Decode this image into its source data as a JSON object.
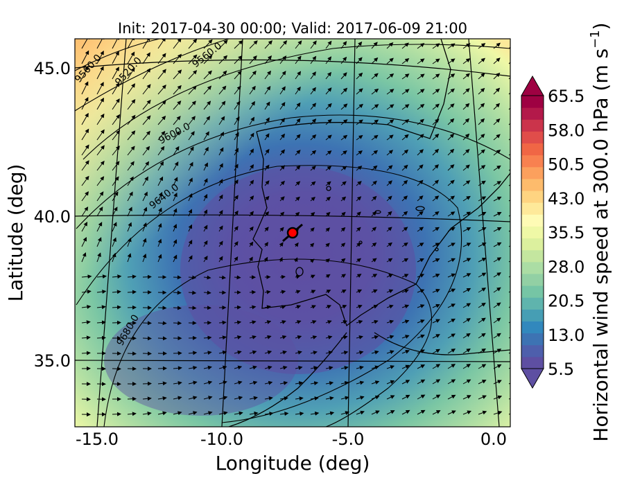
{
  "title": "Init: 2017-04-30 00:00; Valid: 2017-06-09 21:00",
  "xlabel": "Longitude (deg)",
  "ylabel": "Latitude (deg)",
  "x_ticks": [
    "-15.0",
    "-10.0",
    "-5.0",
    "0.0"
  ],
  "y_ticks": [
    "45.0",
    "40.0",
    "35.0"
  ],
  "colorbar": {
    "label": "Horizontal wind speed at 300.0 hPa (m s$^{-1}$)",
    "label_main": "Horizontal wind speed at 300.0 hPa (m s",
    "label_exp": "−1",
    "label_close": ")",
    "ticks": [
      "5.5",
      "13.0",
      "20.5",
      "28.0",
      "35.5",
      "43.0",
      "50.5",
      "58.0",
      "65.5"
    ],
    "colors": [
      "#5e4fa2",
      "#4e5fac",
      "#3d73b3",
      "#3288bd",
      "#469eb4",
      "#5fb4ad",
      "#76c5a5",
      "#92d0a4",
      "#abdda4",
      "#c4e69f",
      "#dcf09e",
      "#eff8a6",
      "#fefbb5",
      "#fee99a",
      "#fed481",
      "#fdbb6c",
      "#fca05d",
      "#f88150",
      "#f06645",
      "#e04d4a",
      "#cb344b",
      "#b3194a",
      "#9e0142"
    ]
  },
  "contour_labels": [
    "9560.0",
    "9520.0",
    "9600.0",
    "9640.0",
    "9680.0",
    "9560.0"
  ],
  "marker": {
    "name": "location-marker",
    "color": "#ff0000"
  },
  "chart_data": {
    "type": "heatmap",
    "title": "Init: 2017-04-30 00:00; Valid: 2017-06-09 21:00",
    "xlabel": "Longitude (deg)",
    "ylabel": "Latitude (deg)",
    "x_range": [
      -16.0,
      0.3
    ],
    "y_range": [
      32.7,
      46.0
    ],
    "z_range": [
      5.5,
      65.5
    ],
    "z_label": "Horizontal wind speed at 300.0 hPa (m s$^{-1}$)",
    "colormap": "Spectral_r",
    "overlay": [
      "wind vectors",
      "geopotential height contours",
      "coastlines",
      "lat/lon graticule"
    ],
    "contour_levels": [
      9520.0,
      9560.0,
      9600.0,
      9640.0,
      9680.0
    ],
    "marker_location": {
      "lon": -7.6,
      "lat": 39.3
    }
  }
}
